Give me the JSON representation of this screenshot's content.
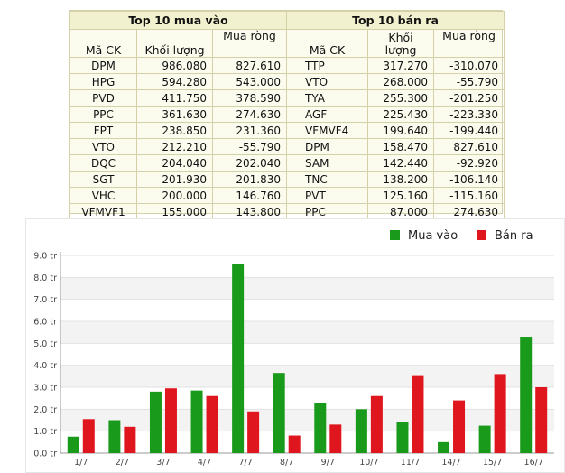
{
  "table": {
    "buy_title": "Top 10 mua vào",
    "sell_title": "Top 10 bán ra",
    "col_code": "Mã CK",
    "col_volume_line1": "Khối lượng",
    "col_volume_line2": "lượng",
    "col_volume_word1": "Khối",
    "col_net": "Mua ròng",
    "buy_rows": [
      {
        "code": "DPM",
        "volume": "986.080",
        "net": "827.610"
      },
      {
        "code": "HPG",
        "volume": "594.280",
        "net": "543.000"
      },
      {
        "code": "PVD",
        "volume": "411.750",
        "net": "378.590"
      },
      {
        "code": "PPC",
        "volume": "361.630",
        "net": "274.630"
      },
      {
        "code": "FPT",
        "volume": "238.850",
        "net": "231.360"
      },
      {
        "code": "VTO",
        "volume": "212.210",
        "net": "-55.790"
      },
      {
        "code": "DQC",
        "volume": "204.040",
        "net": "202.040"
      },
      {
        "code": "SGT",
        "volume": "201.930",
        "net": "201.830"
      },
      {
        "code": "VHC",
        "volume": "200.000",
        "net": "146.760"
      },
      {
        "code": "VFMVF1",
        "volume": "155.000",
        "net": "143.800"
      }
    ],
    "sell_rows": [
      {
        "code": "TTP",
        "volume": "317.270",
        "net": "-310.070"
      },
      {
        "code": "VTO",
        "volume": "268.000",
        "net": "-55.790"
      },
      {
        "code": "TYA",
        "volume": "255.300",
        "net": "-201.250"
      },
      {
        "code": "AGF",
        "volume": "225.430",
        "net": "-223.330"
      },
      {
        "code": "VFMVF4",
        "volume": "199.640",
        "net": "-199.440"
      },
      {
        "code": "DPM",
        "volume": "158.470",
        "net": "827.610"
      },
      {
        "code": "SAM",
        "volume": "142.440",
        "net": "-92.920"
      },
      {
        "code": "TNC",
        "volume": "138.200",
        "net": "-106.140"
      },
      {
        "code": "PVT",
        "volume": "125.160",
        "net": "-115.160"
      },
      {
        "code": "PPC",
        "volume": "87.000",
        "net": "274.630"
      }
    ]
  },
  "chart_data": {
    "type": "bar",
    "title": "",
    "xlabel": "",
    "ylabel": "",
    "categories": [
      "1/7",
      "2/7",
      "3/7",
      "4/7",
      "7/7",
      "8/7",
      "9/7",
      "10/7",
      "11/7",
      "14/7",
      "15/7",
      "16/7"
    ],
    "series": [
      {
        "name": "Mua vào",
        "color": "#1a9a1a",
        "values": [
          0.75,
          1.5,
          2.8,
          2.85,
          8.6,
          3.65,
          2.3,
          2.0,
          1.4,
          0.5,
          1.25,
          5.3
        ]
      },
      {
        "name": "Bán ra",
        "color": "#e0161e",
        "values": [
          1.55,
          1.2,
          2.95,
          2.6,
          1.9,
          0.8,
          1.3,
          2.6,
          3.55,
          2.4,
          3.6,
          3.0
        ]
      }
    ],
    "y_ticks": [
      "0.0 tr",
      "1.0 tr",
      "2.0 tr",
      "3.0 tr",
      "4.0 tr",
      "5.0 tr",
      "6.0 tr",
      "7.0 tr",
      "8.0 tr",
      "9.0 tr"
    ],
    "ylim": [
      0,
      9
    ],
    "unit": "tr",
    "legend_position": "top-right",
    "grid": true
  }
}
